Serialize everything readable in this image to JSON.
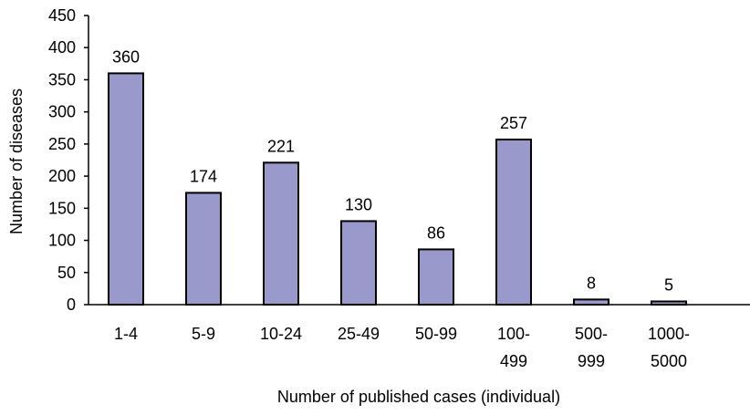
{
  "chart_data": {
    "type": "bar",
    "categories": [
      "1-4",
      "5-9",
      "10-24",
      "25-49",
      "50-99",
      "100-499",
      "500-999",
      "1000-5000"
    ],
    "category_lines": [
      [
        "1-4"
      ],
      [
        "5-9"
      ],
      [
        "10-24"
      ],
      [
        "25-49"
      ],
      [
        "50-99"
      ],
      [
        "100-",
        "499"
      ],
      [
        "500-",
        "999"
      ],
      [
        "1000-",
        "5000"
      ]
    ],
    "values": [
      360,
      174,
      221,
      130,
      86,
      257,
      8,
      5
    ],
    "data_labels": [
      "360",
      "174",
      "221",
      "130",
      "86",
      "257",
      "8",
      "5"
    ],
    "title": "",
    "xlabel": "Number of published cases (individual)",
    "ylabel": "Number of diseases",
    "ylim": [
      0,
      450
    ],
    "yticks": [
      0,
      50,
      100,
      150,
      200,
      250,
      300,
      350,
      400,
      450
    ],
    "grid": false,
    "legend": "none",
    "colors": {
      "bar_fill": "#9999cc",
      "bar_stroke": "#000000",
      "axis": "#000000",
      "text": "#000000"
    }
  }
}
